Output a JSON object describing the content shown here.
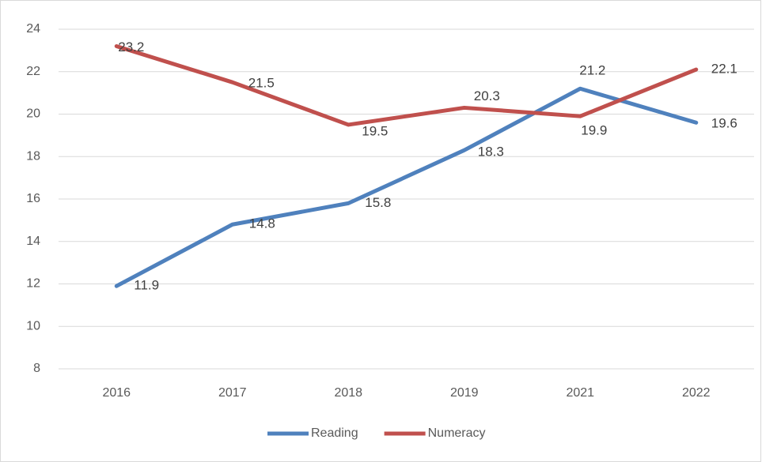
{
  "chart_data": {
    "type": "line",
    "categories": [
      "2016",
      "2017",
      "2018",
      "2019",
      "2021",
      "2022"
    ],
    "series": [
      {
        "name": "Reading",
        "color": "#4f81bd",
        "values": [
          11.9,
          14.8,
          15.8,
          18.3,
          21.2,
          19.6
        ]
      },
      {
        "name": "Numeracy",
        "color": "#c0504d",
        "values": [
          23.2,
          21.5,
          19.5,
          20.3,
          19.9,
          22.1
        ]
      }
    ],
    "ylim": [
      8,
      24
    ],
    "yticks": [
      8,
      10,
      12,
      14,
      16,
      18,
      20,
      22,
      24
    ],
    "grid": true,
    "legend": "bottom"
  }
}
